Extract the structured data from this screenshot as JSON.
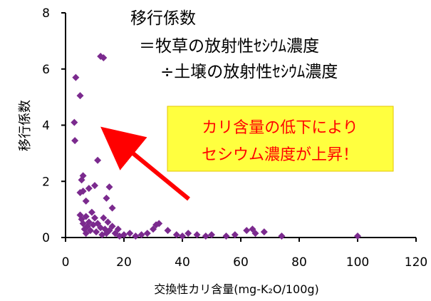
{
  "chart_data": {
    "type": "scatter",
    "title": "",
    "xlabel": "交換性カリ含量(mg-K₂O/100g)",
    "ylabel": "移行係数",
    "xlim": [
      0,
      120
    ],
    "ylim": [
      0,
      8
    ],
    "xticks": [
      "0",
      "20",
      "40",
      "60",
      "80",
      "100",
      "120"
    ],
    "yticks": [
      "0",
      "2",
      "4",
      "6",
      "8"
    ],
    "grid": false,
    "marker_color": "#7B2A8E",
    "series": [
      {
        "points": [
          [
            3,
            4.1
          ],
          [
            3.2,
            3.45
          ],
          [
            3.5,
            5.7
          ],
          [
            5,
            5.05
          ],
          [
            5,
            1.6
          ],
          [
            5.5,
            2.05
          ],
          [
            6,
            1.65
          ],
          [
            6,
            2.2
          ],
          [
            7,
            1.3
          ],
          [
            8,
            1.75
          ],
          [
            7.5,
            0.4
          ],
          [
            10,
            1.85
          ],
          [
            11,
            2.75
          ],
          [
            12,
            6.45
          ],
          [
            13,
            6.4
          ],
          [
            14,
            1.4
          ],
          [
            15,
            1.8
          ],
          [
            16,
            1.05
          ],
          [
            5,
            0.8
          ],
          [
            5.5,
            0.65
          ],
          [
            6,
            0.5
          ],
          [
            6.5,
            0.3
          ],
          [
            7,
            0.75
          ],
          [
            7,
            0.15
          ],
          [
            8,
            0.55
          ],
          [
            8.5,
            0.25
          ],
          [
            9,
            0.9
          ],
          [
            9.5,
            0.45
          ],
          [
            10,
            0.7
          ],
          [
            10.5,
            0.2
          ],
          [
            11,
            0.5
          ],
          [
            12,
            0.35
          ],
          [
            12.5,
            0.1
          ],
          [
            13,
            0.7
          ],
          [
            13.5,
            0.3
          ],
          [
            14,
            0.15
          ],
          [
            14.5,
            0.55
          ],
          [
            15,
            0.25
          ],
          [
            16,
            0.4
          ],
          [
            17,
            0.15
          ],
          [
            18,
            0.3
          ],
          [
            18.5,
            0.05
          ],
          [
            20,
            0.1
          ],
          [
            22,
            0.15
          ],
          [
            24,
            0.05
          ],
          [
            26,
            0.1
          ],
          [
            28,
            0.15
          ],
          [
            30,
            0.3
          ],
          [
            31,
            0.45
          ],
          [
            32,
            0.5
          ],
          [
            35,
            0.25
          ],
          [
            38,
            0.1
          ],
          [
            40,
            0.05
          ],
          [
            42,
            0.15
          ],
          [
            45,
            0.1
          ],
          [
            48,
            0.05
          ],
          [
            50,
            0.1
          ],
          [
            55,
            0.05
          ],
          [
            58,
            0.1
          ],
          [
            62,
            0.25
          ],
          [
            64,
            0.3
          ],
          [
            65,
            0.15
          ],
          [
            68,
            0.2
          ],
          [
            74,
            0.05
          ],
          [
            100,
            0.05
          ]
        ]
      }
    ],
    "annotations": {
      "definition_line1": "移行係数",
      "definition_line2": "＝牧草の放射性ｾｼｳﾑ濃度",
      "definition_line3": "÷土壌の放射性ｾｼｳﾑ濃度",
      "callout_line1": "カリ含量の低下により",
      "callout_line2": "セシウム濃度が上昇！",
      "callout_bg": "#FFFF3F",
      "callout_text_color": "#FF0000",
      "arrow_color": "#FF0000"
    }
  }
}
